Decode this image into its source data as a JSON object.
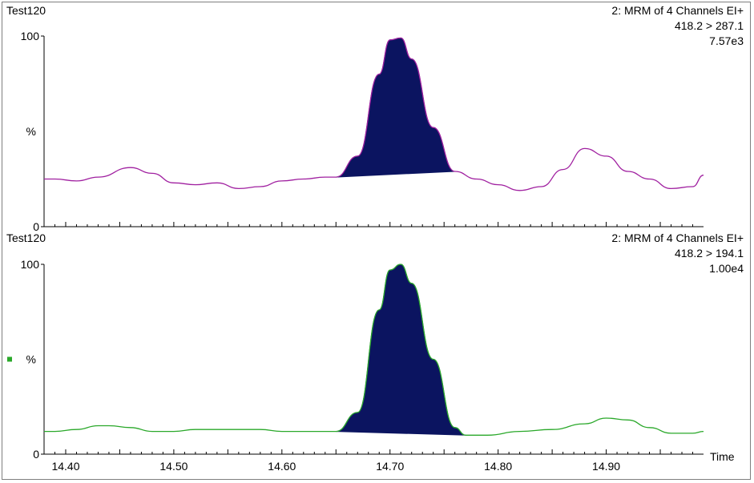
{
  "chart_data": [
    {
      "type": "line",
      "sample": "Test120",
      "title_lines": [
        "2: MRM of 4 Channels EI+",
        "418.2 > 287.1",
        "7.57e3"
      ],
      "ylabel": "%",
      "ytick_labels": [
        "0",
        "100"
      ],
      "yaxis_percent_label_y": 50,
      "xlim": [
        14.38,
        14.99
      ],
      "ylim": [
        0,
        100
      ],
      "color": "#a020a0",
      "peak_fill": "#0b1460",
      "peak_range": [
        14.65,
        14.76
      ],
      "x": [
        14.38,
        14.39,
        14.41,
        14.43,
        14.46,
        14.48,
        14.5,
        14.52,
        14.54,
        14.56,
        14.58,
        14.6,
        14.62,
        14.64,
        14.65,
        14.67,
        14.69,
        14.7,
        14.71,
        14.72,
        14.74,
        14.76,
        14.78,
        14.8,
        14.82,
        14.84,
        14.86,
        14.88,
        14.9,
        14.92,
        14.94,
        14.96,
        14.98,
        14.99
      ],
      "y": [
        25,
        25,
        24,
        26,
        31,
        28,
        23,
        22,
        23,
        20,
        21,
        24,
        25,
        26,
        26,
        37,
        80,
        98,
        99,
        88,
        52,
        29,
        25,
        22,
        19,
        21,
        30,
        41,
        37,
        29,
        25,
        20,
        21,
        27
      ]
    },
    {
      "type": "line",
      "sample": "Test120",
      "title_lines": [
        "2: MRM of 4 Channels EI+",
        "418.2 > 194.1",
        "1.00e4"
      ],
      "ylabel": "%",
      "ytick_labels": [
        "0",
        "100"
      ],
      "xlim": [
        14.38,
        14.99
      ],
      "ylim": [
        0,
        100
      ],
      "xticks": [
        "14.40",
        "14.50",
        "14.60",
        "14.70",
        "14.80",
        "14.90"
      ],
      "xlabel": "Time",
      "color": "#2aa82a",
      "peak_fill": "#0b1460",
      "peak_range": [
        14.65,
        14.77
      ],
      "x": [
        14.38,
        14.39,
        14.41,
        14.43,
        14.44,
        14.46,
        14.48,
        14.5,
        14.52,
        14.55,
        14.58,
        14.6,
        14.62,
        14.64,
        14.65,
        14.67,
        14.69,
        14.7,
        14.71,
        14.72,
        14.74,
        14.76,
        14.77,
        14.79,
        14.82,
        14.85,
        14.88,
        14.9,
        14.92,
        14.94,
        14.96,
        14.98,
        14.99
      ],
      "y": [
        12,
        12,
        13,
        15,
        15,
        14,
        12,
        12,
        13,
        13,
        13,
        12,
        12,
        12,
        12,
        22,
        76,
        97,
        100,
        90,
        50,
        14,
        10,
        10,
        12,
        13,
        16,
        19,
        18,
        14,
        11,
        11,
        12
      ]
    }
  ],
  "marker_color": "#2aa82a"
}
